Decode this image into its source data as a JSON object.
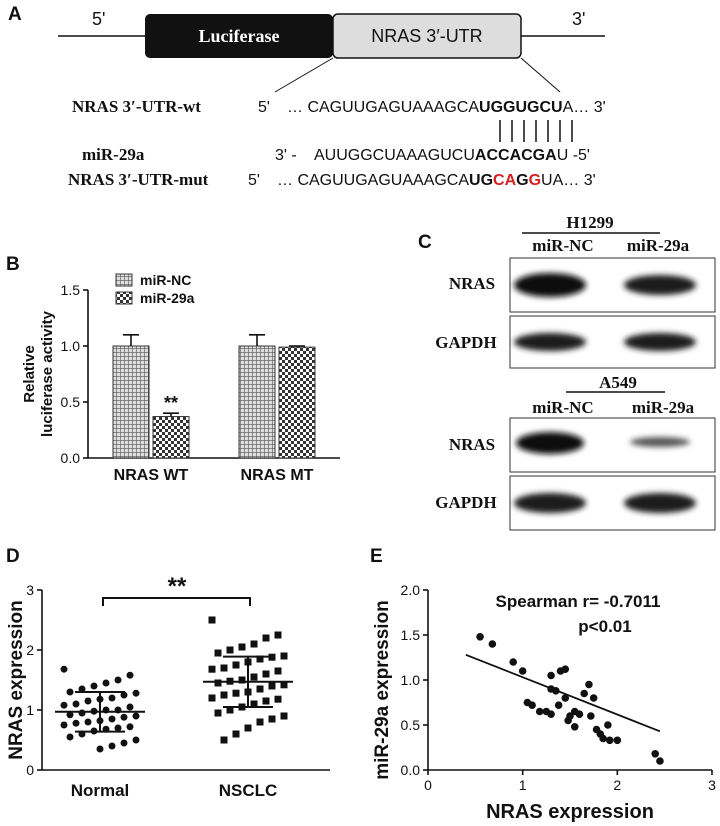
{
  "panel_labels": [
    "A",
    "B",
    "C",
    "D",
    "E"
  ],
  "construct": {
    "five_prime": "5'",
    "three_prime": "3'",
    "luciferase": "Luciferase",
    "utr": "NRAS 3′-UTR",
    "rows": [
      {
        "label": "NRAS 3′-UTR-wt",
        "segments": [
          {
            "text": "5'",
            "style": "plain"
          },
          {
            "text": "… CAGUUGAGUAAAGCA",
            "style": "plain"
          },
          {
            "text": "UGGUGCU",
            "style": "bold"
          },
          {
            "text": "A… 3'",
            "style": "plain"
          }
        ]
      },
      {
        "label": "miR-29a",
        "segments": [
          {
            "text": "3' -",
            "style": "plain"
          },
          {
            "text": "AUUGGCUAAAGUCU",
            "style": "plain"
          },
          {
            "text": "ACCACGA",
            "style": "bold"
          },
          {
            "text": "U -5'",
            "style": "plain"
          }
        ]
      },
      {
        "label": "NRAS 3′-UTR-mut",
        "segments": [
          {
            "text": "5'",
            "style": "plain"
          },
          {
            "text": "… CAGUUGAGUAAAGCA",
            "style": "plain"
          },
          {
            "text": "UG",
            "style": "bold"
          },
          {
            "text": "CA",
            "style": "red"
          },
          {
            "text": "G",
            "style": "bold"
          },
          {
            "text": "G",
            "style": "red"
          },
          {
            "text": "UA… 3'",
            "style": "plain"
          }
        ]
      }
    ]
  },
  "blot": {
    "groups": [
      {
        "cell_line": "H1299",
        "lanes": [
          "miR-NC",
          "miR-29a"
        ],
        "proteins": [
          "NRAS",
          "GAPDH"
        ]
      },
      {
        "cell_line": "A549",
        "lanes": [
          "miR-NC",
          "miR-29a"
        ],
        "proteins": [
          "NRAS",
          "GAPDH"
        ]
      }
    ]
  },
  "chart_data": [
    {
      "type": "bar",
      "ylabel": [
        "Relative",
        "luciferase activity"
      ],
      "categories": [
        "NRAS WT",
        "NRAS MT"
      ],
      "series": [
        {
          "name": "miR-NC",
          "values": [
            1.0,
            1.0
          ],
          "errors": [
            0.1,
            0.1
          ]
        },
        {
          "name": "miR-29a",
          "values": [
            0.37,
            0.99
          ],
          "errors": [
            0.03,
            0.01
          ]
        }
      ],
      "ylim": [
        0,
        1.5
      ],
      "yticks": [
        {
          "value": 0,
          "label": "0.0"
        },
        0.5,
        {
          "value": 1,
          "label": "1.0"
        },
        1.5
      ],
      "annotation": "**",
      "legend": "top-left"
    },
    {
      "type": "dot",
      "ylabel": "NRAS expression",
      "categories": [
        "Normal",
        "NSCLC"
      ],
      "markers": [
        "circle",
        "square"
      ],
      "values": [
        [
          1.68,
          1.58,
          1.5,
          1.45,
          1.4,
          1.35,
          1.3,
          1.28,
          1.25,
          1.2,
          1.18,
          1.15,
          1.1,
          1.08,
          1.05,
          1.0,
          1.0,
          0.98,
          0.95,
          0.92,
          0.9,
          0.88,
          0.85,
          0.82,
          0.8,
          0.78,
          0.75,
          0.72,
          0.7,
          0.68,
          0.65,
          0.6,
          0.55,
          0.5,
          0.45,
          0.4,
          0.35
        ],
        [
          2.5,
          2.25,
          2.2,
          2.1,
          2.05,
          2.0,
          1.95,
          1.9,
          1.88,
          1.85,
          1.8,
          1.75,
          1.7,
          1.68,
          1.65,
          1.6,
          1.55,
          1.5,
          1.48,
          1.45,
          1.42,
          1.4,
          1.35,
          1.3,
          1.28,
          1.25,
          1.2,
          1.18,
          1.15,
          1.1,
          1.05,
          1.0,
          0.95,
          0.9,
          0.85,
          0.8,
          0.7,
          0.6,
          0.5
        ]
      ],
      "means": [
        0.97,
        1.47
      ],
      "sd": [
        0.33,
        0.42
      ],
      "ylim": [
        0,
        3
      ],
      "yticks": [
        0,
        1,
        2,
        3
      ],
      "annotation": "**"
    },
    {
      "type": "scatter",
      "xlabel": "NRAS expression",
      "ylabel": "miR-29a expression",
      "x": [
        0.55,
        0.68,
        0.9,
        1.0,
        1.05,
        1.1,
        1.18,
        1.25,
        1.3,
        1.3,
        1.35,
        1.38,
        1.4,
        1.45,
        1.45,
        1.48,
        1.5,
        1.55,
        1.6,
        1.65,
        1.7,
        1.72,
        1.75,
        1.78,
        1.82,
        1.85,
        1.9,
        1.92,
        2.0,
        2.4,
        2.45,
        1.3,
        1.55
      ],
      "y": [
        1.48,
        1.4,
        1.2,
        1.1,
        0.75,
        0.72,
        0.65,
        0.65,
        0.62,
        0.9,
        0.88,
        0.72,
        1.1,
        1.12,
        0.8,
        0.55,
        0.6,
        0.48,
        0.62,
        0.85,
        0.95,
        0.6,
        0.8,
        0.45,
        0.4,
        0.35,
        0.5,
        0.33,
        0.33,
        0.18,
        0.1,
        1.05,
        0.65
      ],
      "fit": {
        "x": [
          0.4,
          2.45
        ],
        "y": [
          1.28,
          0.43
        ]
      },
      "xlim": [
        0,
        3
      ],
      "xticks": [
        0,
        1,
        2,
        3
      ],
      "ylim": [
        0,
        2
      ],
      "yticks": [
        {
          "value": 0,
          "label": "0.0"
        },
        0.5,
        {
          "value": 1,
          "label": "1.0"
        },
        1.5,
        {
          "value": 2,
          "label": "2.0"
        }
      ],
      "annotations": [
        "Spearman r= -0.7011",
        "p<0.01"
      ]
    }
  ]
}
